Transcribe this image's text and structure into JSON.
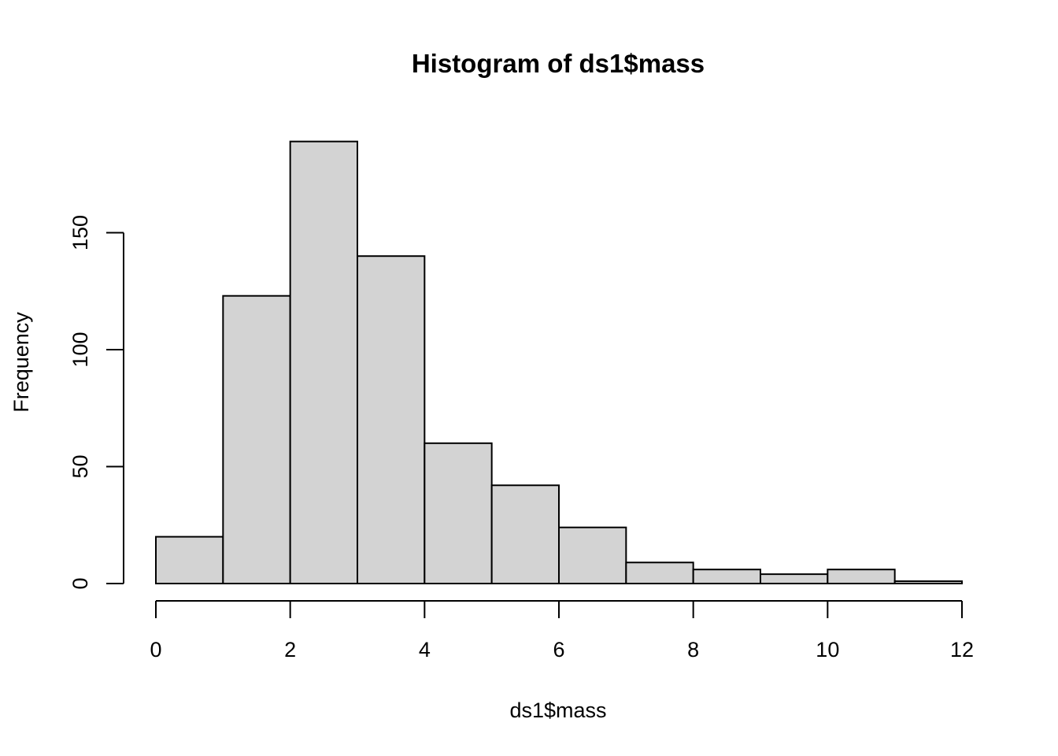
{
  "chart_data": {
    "type": "bar",
    "title": "Histogram of ds1$mass",
    "xlabel": "ds1$mass",
    "ylabel": "Frequency",
    "bins": [
      {
        "start": 0,
        "end": 1,
        "count": 20
      },
      {
        "start": 1,
        "end": 2,
        "count": 123
      },
      {
        "start": 2,
        "end": 3,
        "count": 189
      },
      {
        "start": 3,
        "end": 4,
        "count": 140
      },
      {
        "start": 4,
        "end": 5,
        "count": 60
      },
      {
        "start": 5,
        "end": 6,
        "count": 42
      },
      {
        "start": 6,
        "end": 7,
        "count": 24
      },
      {
        "start": 7,
        "end": 8,
        "count": 9
      },
      {
        "start": 8,
        "end": 9,
        "count": 6
      },
      {
        "start": 9,
        "end": 10,
        "count": 4
      },
      {
        "start": 10,
        "end": 11,
        "count": 6
      },
      {
        "start": 11,
        "end": 12,
        "count": 1
      }
    ],
    "xlim": [
      0,
      12
    ],
    "ylim": [
      0,
      189
    ],
    "x_ticks": [
      0,
      2,
      4,
      6,
      8,
      10,
      12
    ],
    "y_ticks": [
      0,
      50,
      100,
      150
    ],
    "grid": false,
    "bar_color": "#d3d3d3",
    "edge_color": "#000000"
  }
}
